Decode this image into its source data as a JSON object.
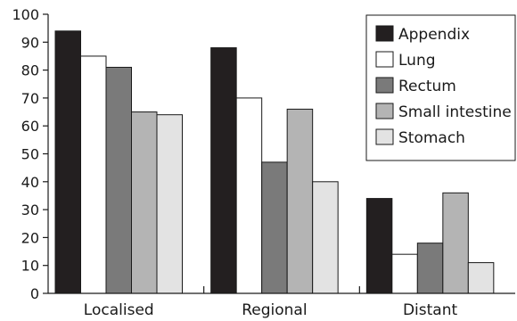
{
  "chart_data": {
    "type": "bar",
    "categories": [
      "Localised",
      "Regional",
      "Distant"
    ],
    "series": [
      {
        "name": "Appendix",
        "values": [
          94,
          88,
          34
        ],
        "color": "#231f20"
      },
      {
        "name": "Lung",
        "values": [
          85,
          70,
          14
        ],
        "color": "#ffffff"
      },
      {
        "name": "Rectum",
        "values": [
          81,
          47,
          18
        ],
        "color": "#7a7a7a"
      },
      {
        "name": "Small intestine",
        "values": [
          65,
          66,
          36
        ],
        "color": "#b4b4b4"
      },
      {
        "name": "Stomach",
        "values": [
          64,
          40,
          11
        ],
        "color": "#e3e3e3"
      }
    ],
    "ylim": [
      0,
      100
    ],
    "yticks": [
      0,
      10,
      20,
      30,
      40,
      50,
      60,
      70,
      80,
      90,
      100
    ],
    "xlabel": "",
    "ylabel": "",
    "title": "",
    "grid": false,
    "legend": "top-right, boxed"
  }
}
